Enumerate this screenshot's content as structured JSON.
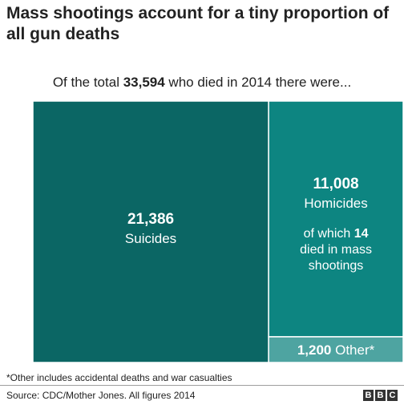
{
  "title": "Mass shootings account for a tiny proportion of all gun deaths",
  "intro": {
    "before": "Of the total ",
    "total": "33,594",
    "after": " who died in 2014 there were..."
  },
  "chart_data": {
    "type": "treemap",
    "unit": "deaths",
    "total": 33594,
    "cells": [
      {
        "name": "Suicides",
        "value": 21386,
        "value_label": "21,386",
        "color": "#0b6664"
      },
      {
        "name": "Homicides",
        "value": 11008,
        "value_label": "11,008",
        "color": "#0d8581",
        "note_before": "of which ",
        "note_value": "14",
        "note_after": " died in mass shootings",
        "mass_shootings": 14
      },
      {
        "name": "Other*",
        "value": 1200,
        "value_label": "1,200",
        "color": "#4ea4a1"
      }
    ]
  },
  "footnote": "*Other includes accidental deaths and war casualties",
  "source": "Source: CDC/Mother Jones. All figures 2014",
  "logo": [
    "B",
    "B",
    "C"
  ]
}
